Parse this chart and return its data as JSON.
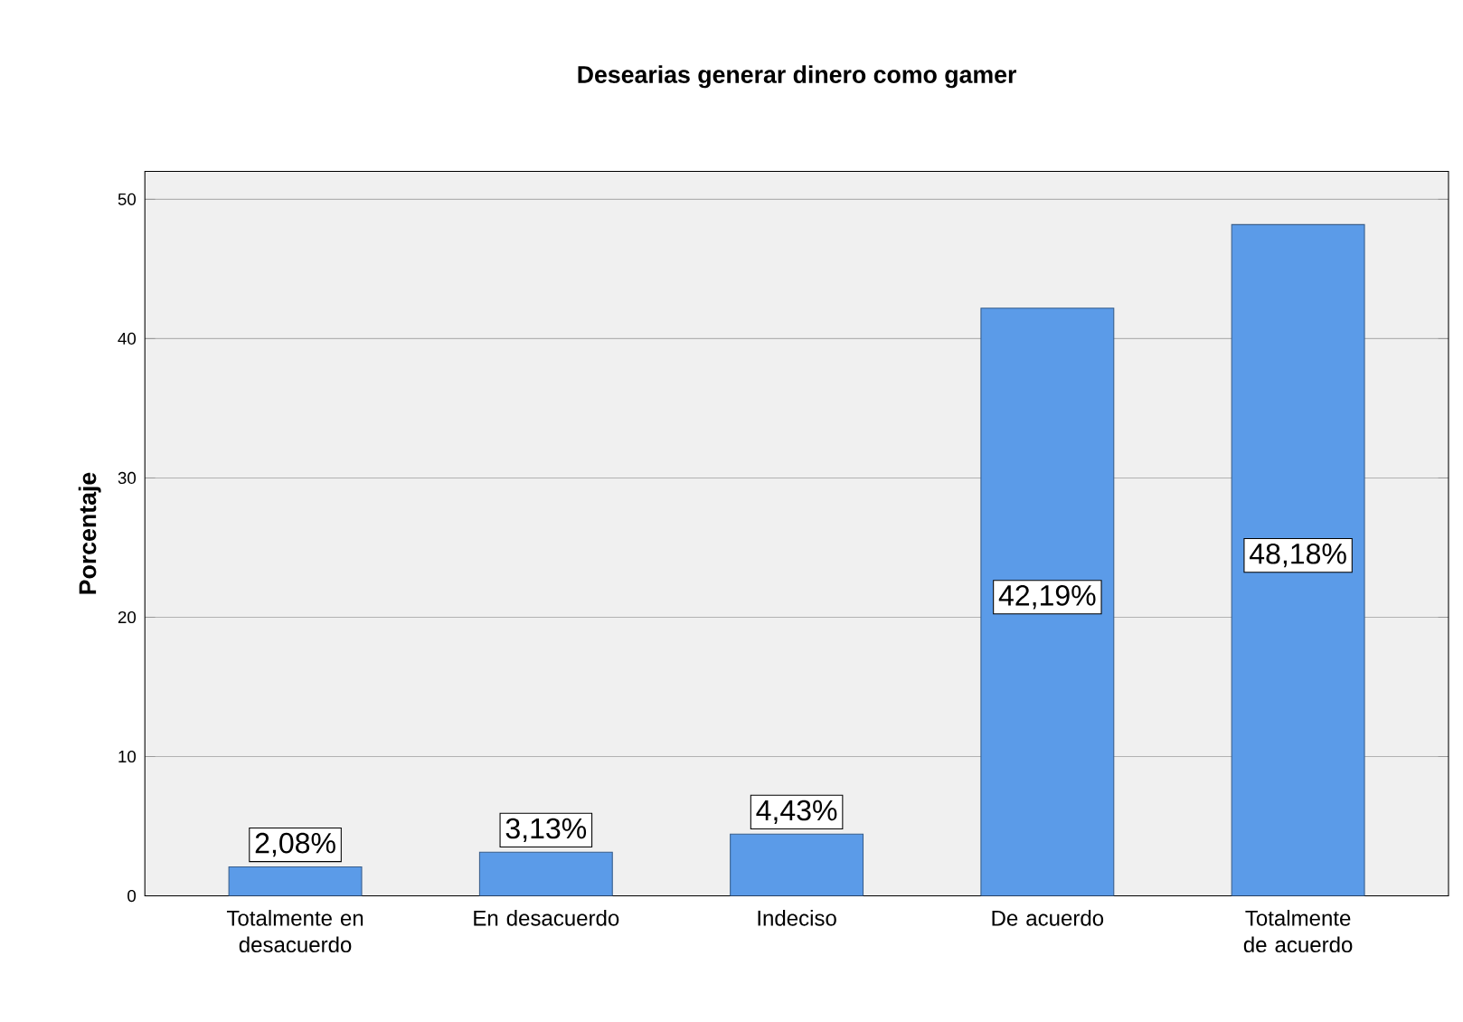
{
  "chart_data": {
    "type": "bar",
    "title": "Desearias generar dinero como gamer",
    "ylabel": "Porcentaje",
    "categories": [
      "Totalmente en desacuerdo",
      "En desacuerdo",
      "Indeciso",
      "De acuerdo",
      "Totalmente de acuerdo"
    ],
    "values": [
      2.08,
      3.13,
      4.43,
      42.19,
      48.18
    ],
    "value_labels": [
      "2,08%",
      "3,13%",
      "4,43%",
      "42,19%",
      "48,18%"
    ],
    "color": "#5b9be8",
    "ylim": [
      0,
      52
    ],
    "yticks": [
      0,
      10,
      20,
      30,
      40,
      50
    ],
    "grid": "y"
  }
}
